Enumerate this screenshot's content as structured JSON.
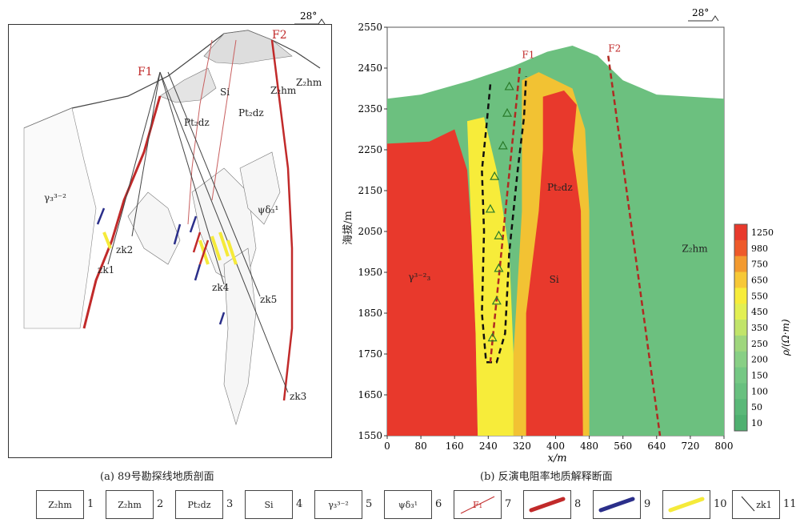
{
  "left_panel": {
    "strike": "28°",
    "caption": "(a) 89号勘探线地质剖面",
    "labels": {
      "F1": "F1",
      "F2": "F2",
      "Si": "Si",
      "pt2dz_a": "Pt₂dz",
      "pt2dz_b": "Pt₂dz",
      "z2hm_a": "Z₂hm",
      "z2hm_b": "Z₂hm",
      "gamma": "γ₃³⁻²",
      "psi": "ψδ₃¹",
      "zk1": "zk1",
      "zk2": "zk2",
      "zk3": "zk3",
      "zk4": "zk4",
      "zk5": "zk5"
    }
  },
  "right_panel": {
    "strike": "28°",
    "caption": "(b) 反演电阻率地质解释断面",
    "ylabel": "海拔/m",
    "xlabel": "x/m",
    "colorbar_label": "ρ/(Ω·m)",
    "labels": {
      "F1": "F1",
      "F2": "F2",
      "pt2dz": "Pt₂dz",
      "si": "Si",
      "gamma": "γ³⁻²₃",
      "z2hm": "Z₂hm"
    }
  },
  "chart_data": {
    "type": "heatmap",
    "x_ticks": [
      0,
      80,
      160,
      240,
      320,
      400,
      480,
      560,
      640,
      720,
      800
    ],
    "y_ticks": [
      2550,
      2450,
      2350,
      2250,
      2150,
      2050,
      1950,
      1850,
      1750,
      1650,
      1550
    ],
    "xlim": [
      0,
      800
    ],
    "ylim": [
      1550,
      2550
    ],
    "colorbar_ticks": [
      "1250",
      "980",
      "750",
      "650",
      "550",
      "450",
      "350",
      "250",
      "200",
      "150",
      "100",
      "50",
      "10"
    ],
    "colorbar_colors": [
      "#e8392c",
      "#ee5a2a",
      "#f39a2f",
      "#f7c836",
      "#f7ec3a",
      "#e2ef52",
      "#c1e46a",
      "#9fd67d",
      "#88cf85",
      "#75c884",
      "#68c07f",
      "#5ab878",
      "#4fb070"
    ]
  },
  "legend": [
    {
      "num": "1",
      "text": "Z₂hm"
    },
    {
      "num": "2",
      "text": "Z₂hm"
    },
    {
      "num": "3",
      "text": "Pt₂dz"
    },
    {
      "num": "4",
      "text": "Si"
    },
    {
      "num": "5",
      "text": "γ₃³⁻²"
    },
    {
      "num": "6",
      "text": "ψδ₃¹"
    },
    {
      "num": "7",
      "text": "F₁"
    },
    {
      "num": "8",
      "text": ""
    },
    {
      "num": "9",
      "text": ""
    },
    {
      "num": "10",
      "text": ""
    },
    {
      "num": "11",
      "text": "zk1"
    }
  ]
}
